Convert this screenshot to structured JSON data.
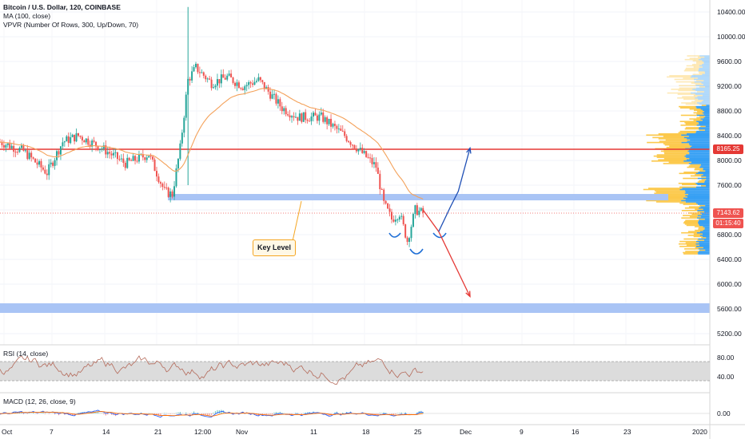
{
  "chart_data": [
    {
      "type": "candlestick",
      "title": "Bitcoin / U.S. Dollar, 120, COINBASE",
      "indicators": [
        "MA (100, close)",
        "VPVR (Number Of Rows, 300, Up/Down, 70)"
      ],
      "x_ticks": [
        "Oct",
        "7",
        "14",
        "21",
        "12:00",
        "Nov",
        "11",
        "18",
        "25",
        "Dec",
        "9",
        "16",
        "23",
        "2020"
      ],
      "y_ticks": [
        10400,
        10000,
        9600,
        9200,
        8800,
        8400,
        8000,
        7600,
        7200,
        6800,
        6400,
        6000,
        5600,
        5200
      ],
      "y_tick_labels": [
        "10400.00",
        "10000.00",
        "9600.00",
        "9200.00",
        "8800.00",
        "8400.00",
        "8000.00",
        "7600.00",
        "6800.00",
        "6400.00",
        "6000.00",
        "5600.00",
        "5200.00"
      ],
      "ylim": [
        5050,
        10600
      ],
      "horizontal_line": 8165.25,
      "price_labels": [
        "8165.25",
        "7143.62",
        "01:15:40"
      ],
      "annotations": [
        "Key Level"
      ],
      "zones": [
        {
          "from": 7430,
          "to": 7520,
          "label": "Key Level"
        },
        {
          "from": 5550,
          "to": 5680
        }
      ],
      "close_series": [
        {
          "x": 0,
          "y": 8300
        },
        {
          "x": 3,
          "y": 8150
        },
        {
          "x": 6,
          "y": 7800
        },
        {
          "x": 8,
          "y": 8300
        },
        {
          "x": 10,
          "y": 8400
        },
        {
          "x": 13,
          "y": 8200
        },
        {
          "x": 16,
          "y": 7950
        },
        {
          "x": 19,
          "y": 8100
        },
        {
          "x": 21,
          "y": 7500
        },
        {
          "x": 22,
          "y": 7450
        },
        {
          "x": 23,
          "y": 8200
        },
        {
          "x": 24,
          "y": 9300
        },
        {
          "x": 25,
          "y": 9500
        },
        {
          "x": 27,
          "y": 9250
        },
        {
          "x": 29,
          "y": 9350
        },
        {
          "x": 31,
          "y": 9200
        },
        {
          "x": 33,
          "y": 9300
        },
        {
          "x": 36,
          "y": 8850
        },
        {
          "x": 38,
          "y": 8700
        },
        {
          "x": 41,
          "y": 8700
        },
        {
          "x": 44,
          "y": 8400
        },
        {
          "x": 46,
          "y": 8150
        },
        {
          "x": 48,
          "y": 7900
        },
        {
          "x": 49,
          "y": 7300
        },
        {
          "x": 50,
          "y": 7050
        },
        {
          "x": 51,
          "y": 7150
        },
        {
          "x": 52,
          "y": 6700
        },
        {
          "x": 53,
          "y": 7200
        },
        {
          "x": 54,
          "y": 7150
        }
      ],
      "projections": [
        {
          "color": "#e53935",
          "points": [
            [
              54,
              7200
            ],
            [
              56,
              6850
            ],
            [
              60,
              5800
            ]
          ]
        },
        {
          "color": "#1e4fb5",
          "points": [
            [
              56,
              6850
            ],
            [
              57.5,
              7250
            ],
            [
              58.5,
              7500
            ],
            [
              60,
              8200
            ]
          ]
        }
      ]
    },
    {
      "type": "line",
      "title": "RSI (14, close)",
      "y_tick_labels": [
        "80.00",
        "40.00"
      ],
      "ylim": [
        10,
        90
      ],
      "band": [
        30,
        70
      ]
    },
    {
      "type": "line",
      "title": "MACD (12, 26, close, 9)",
      "y_tick_labels": [
        "0.00"
      ]
    }
  ],
  "colors": {
    "up": "#26a69a",
    "down": "#ef5350",
    "ma": "#f4a25b",
    "resistance": "#e53935",
    "zone": "#a9c4f5",
    "vp_up": "#2196f3",
    "vp_down": "#fbc02d",
    "last_price_tag": "#ef5350",
    "timer_tag": "#ef5350"
  }
}
